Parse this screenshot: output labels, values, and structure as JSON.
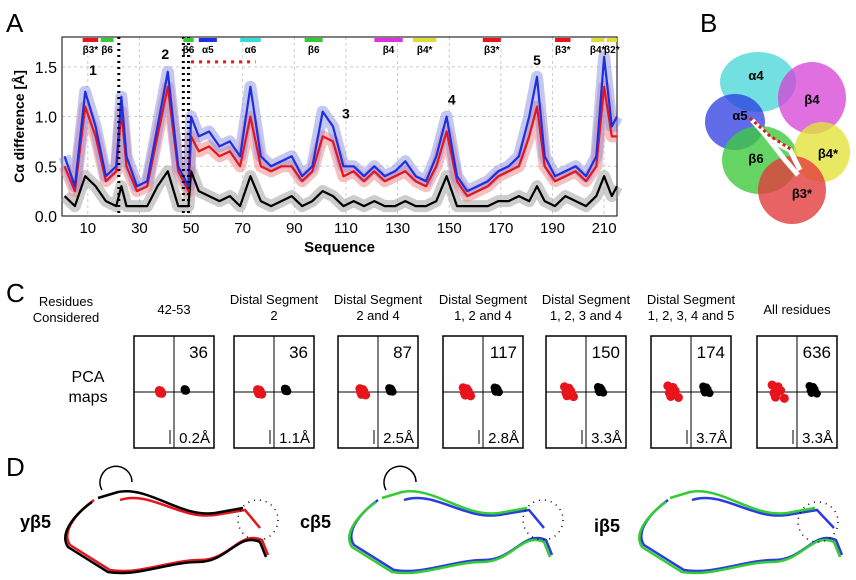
{
  "chart_data": {
    "type": "line",
    "panel_label": "A",
    "xlabel": "Sequence",
    "ylabel": "Cα difference [Å]",
    "xlim": [
      0,
      215
    ],
    "ylim": [
      0,
      1.8
    ],
    "xticks": [
      10,
      30,
      50,
      70,
      90,
      110,
      130,
      150,
      170,
      190,
      210
    ],
    "yticks": [
      {
        "value": 0,
        "label": "0.0"
      },
      {
        "value": 0.5,
        "label": "0.5"
      },
      {
        "value": 1,
        "label": "1.0"
      },
      {
        "value": 1.5,
        "label": "1.5"
      }
    ],
    "grid": true,
    "x": [
      1,
      5,
      9,
      13,
      17,
      21,
      23,
      25,
      29,
      33,
      37,
      41,
      45,
      49,
      50,
      53,
      57,
      61,
      65,
      69,
      73,
      77,
      81,
      85,
      89,
      93,
      97,
      101,
      105,
      109,
      113,
      117,
      121,
      125,
      129,
      133,
      137,
      141,
      145,
      149,
      153,
      157,
      161,
      165,
      169,
      173,
      177,
      181,
      184,
      187,
      191,
      195,
      199,
      203,
      207,
      210,
      213,
      215
    ],
    "series": [
      {
        "color": "#000000",
        "band": "#999999",
        "values": [
          0.2,
          0.1,
          0.4,
          0.3,
          0.15,
          0.1,
          0.3,
          0.1,
          0.1,
          0.1,
          0.3,
          0.45,
          0.1,
          0.1,
          0.45,
          0.25,
          0.2,
          0.15,
          0.2,
          0.1,
          0.4,
          0.15,
          0.1,
          0.15,
          0.2,
          0.1,
          0.15,
          0.25,
          0.2,
          0.1,
          0.15,
          0.1,
          0.15,
          0.1,
          0.1,
          0.15,
          0.1,
          0.1,
          0.15,
          0.4,
          0.1,
          0.1,
          0.1,
          0.1,
          0.15,
          0.15,
          0.2,
          0.15,
          0.3,
          0.15,
          0.1,
          0.2,
          0.15,
          0.1,
          0.2,
          0.4,
          0.2,
          0.3
        ]
      },
      {
        "color": "#e8141c",
        "band": "#f08080",
        "values": [
          0.5,
          0.25,
          1.1,
          0.8,
          0.35,
          0.45,
          1.05,
          0.5,
          0.25,
          0.3,
          0.8,
          1.3,
          0.45,
          0.25,
          0.8,
          0.65,
          0.7,
          0.6,
          0.65,
          0.5,
          1.0,
          0.5,
          0.45,
          0.5,
          0.5,
          0.35,
          0.45,
          0.8,
          0.75,
          0.4,
          0.45,
          0.35,
          0.45,
          0.35,
          0.4,
          0.45,
          0.35,
          0.3,
          0.5,
          0.85,
          0.35,
          0.2,
          0.25,
          0.3,
          0.4,
          0.45,
          0.5,
          0.8,
          1.1,
          0.5,
          0.35,
          0.4,
          0.45,
          0.35,
          0.5,
          1.3,
          0.8,
          0.8
        ]
      },
      {
        "color": "#1f2ee0",
        "band": "#8a8fe0",
        "values": [
          0.6,
          0.3,
          1.25,
          0.9,
          0.4,
          0.5,
          1.2,
          0.6,
          0.3,
          0.35,
          0.9,
          1.45,
          0.5,
          0.3,
          1.0,
          0.8,
          0.85,
          0.7,
          0.75,
          0.6,
          1.3,
          0.6,
          0.5,
          0.55,
          0.6,
          0.4,
          0.5,
          1.05,
          0.9,
          0.5,
          0.5,
          0.4,
          0.5,
          0.4,
          0.45,
          0.55,
          0.4,
          0.35,
          0.6,
          1.0,
          0.4,
          0.25,
          0.3,
          0.35,
          0.45,
          0.5,
          0.6,
          1.0,
          1.4,
          0.6,
          0.4,
          0.45,
          0.5,
          0.4,
          0.6,
          1.6,
          0.9,
          1.0
        ]
      }
    ],
    "vlines": [
      22,
      47,
      49
    ],
    "hline": {
      "x": [
        50,
        75
      ],
      "y": 1.55,
      "color": "#e8141c"
    },
    "annotations": [
      {
        "text": "1",
        "x": 12,
        "y": 1.42
      },
      {
        "text": "2",
        "x": 40,
        "y": 1.58
      },
      {
        "text": "3",
        "x": 110,
        "y": 0.98
      },
      {
        "text": "4",
        "x": 151,
        "y": 1.12
      },
      {
        "text": "5",
        "x": 184,
        "y": 1.52
      }
    ],
    "segments": [
      {
        "label": "β3*",
        "color": "#e8141c",
        "start": 8,
        "end": 14
      },
      {
        "label": "β6",
        "color": "#33cc33",
        "start": 15,
        "end": 20
      },
      {
        "label": "β6",
        "color": "#33cc33",
        "start": 47,
        "end": 51
      },
      {
        "label": "α5",
        "color": "#1f2ee0",
        "start": 53,
        "end": 60
      },
      {
        "label": "α6",
        "color": "#33dddd",
        "start": 69,
        "end": 77
      },
      {
        "label": "β6",
        "color": "#33cc33",
        "start": 94,
        "end": 101
      },
      {
        "label": "β4",
        "color": "#dd33dd",
        "start": 121,
        "end": 132
      },
      {
        "label": "β4*",
        "color": "#dddd33",
        "start": 136,
        "end": 145
      },
      {
        "label": "β3*",
        "color": "#e8141c",
        "start": 163,
        "end": 170
      },
      {
        "label": "β3*",
        "color": "#e8141c",
        "start": 191,
        "end": 197
      },
      {
        "label": "β4*",
        "color": "#dddd33",
        "start": 205,
        "end": 210
      },
      {
        "label": "β2*",
        "color": "#dddd33",
        "start": 211,
        "end": 215
      }
    ]
  },
  "panels": {
    "B": {
      "label": "B",
      "regions": [
        "α4",
        "α5",
        "β4",
        "β6",
        "β4*",
        "β3*"
      ]
    },
    "C": {
      "label": "C",
      "row_headers": [
        [
          "Residues",
          "Considered"
        ],
        [
          "PCA",
          "maps"
        ]
      ],
      "columns": [
        {
          "header": [
            "42-53"
          ],
          "count": "36",
          "scale": "0.2Å"
        },
        {
          "header": [
            "Distal Segment",
            "2"
          ],
          "count": "36",
          "scale": "1.1Å"
        },
        {
          "header": [
            "Distal Segment",
            "2 and 4"
          ],
          "count": "87",
          "scale": "2.5Å"
        },
        {
          "header": [
            "Distal Segment",
            "1, 2 and 4"
          ],
          "count": "117",
          "scale": "2.8Å"
        },
        {
          "header": [
            "Distal Segment",
            "1, 2, 3 and 4"
          ],
          "count": "150",
          "scale": "3.3Å"
        },
        {
          "header": [
            "Distal Segment",
            "1, 2, 3, 4 and 5"
          ],
          "count": "174",
          "scale": "3.7Å"
        },
        {
          "header": [
            "All residues"
          ],
          "count": "636",
          "scale": "3.3Å"
        }
      ]
    },
    "D": {
      "label": "D",
      "structures": [
        "yβ5",
        "cβ5",
        "iβ5"
      ]
    }
  }
}
